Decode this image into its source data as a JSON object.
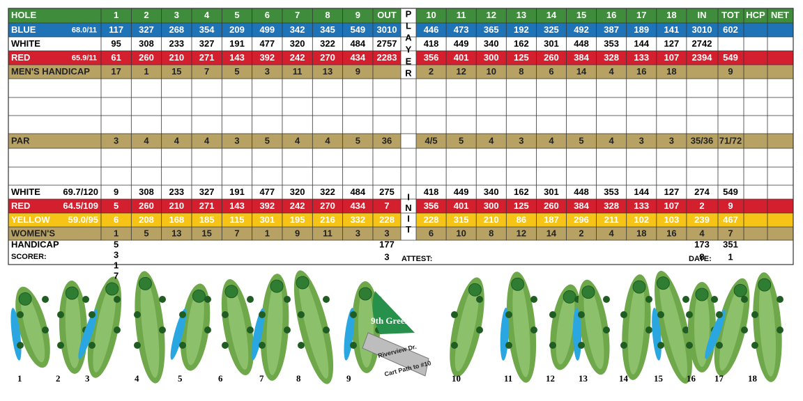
{
  "header": {
    "hole_label": "HOLE",
    "holes": [
      "1",
      "2",
      "3",
      "4",
      "5",
      "6",
      "7",
      "8",
      "9",
      "10",
      "11",
      "12",
      "13",
      "14",
      "15",
      "16",
      "17",
      "18"
    ],
    "out": "OUT",
    "in": "IN",
    "tot": "TOT",
    "hcp": "HCP",
    "net": "NET",
    "player": [
      "P",
      "L",
      "A",
      "Y",
      "E",
      "R"
    ]
  },
  "rows": [
    {
      "label": "BLUE",
      "rating": "68.0/11",
      "front": [
        117,
        327,
        268,
        354,
        209,
        499,
        342,
        345,
        549
      ],
      "out": 3010,
      "back": [
        446,
        473,
        365,
        192,
        325,
        492,
        387,
        189,
        141
      ],
      "in": 3010,
      "tot": 602
    },
    {
      "label": "WHITE",
      "front": [
        95,
        308,
        233,
        327,
        191,
        477,
        320,
        322,
        484
      ],
      "out": 2757,
      "back": [
        418,
        449,
        340,
        162,
        301,
        448,
        353,
        144,
        127
      ],
      "in": 2742
    },
    {
      "label": "RED",
      "rating": "65.9/11",
      "front": [
        61,
        260,
        210,
        271,
        143,
        392,
        242,
        270,
        434
      ],
      "out": 2283,
      "back": [
        356,
        401,
        300,
        125,
        260,
        384,
        328,
        133,
        107
      ],
      "in": 2394,
      "tot": 549
    },
    {
      "label": "MEN'S HANDICAP",
      "front": [
        17,
        1,
        15,
        7,
        5,
        3,
        11,
        13,
        9
      ],
      "back": [
        2,
        12,
        10,
        8,
        6,
        14,
        4,
        16,
        18
      ],
      "tot": 9
    },
    {
      "label": "PAR",
      "front": [
        3,
        4,
        4,
        4,
        3,
        5,
        4,
        4,
        5
      ],
      "out": 36,
      "back": [
        "4/5",
        5,
        4,
        3,
        4,
        5,
        4,
        3,
        3
      ],
      "in": "35/36",
      "tot": "71/72"
    },
    {
      "label": "WHITE",
      "rating": "69.7/120",
      "front": [
        9,
        308,
        233,
        327,
        191,
        477,
        320,
        322,
        484
      ],
      "out": 275,
      "back": [
        418,
        449,
        340,
        162,
        301,
        448,
        353,
        144,
        127
      ],
      "in": 274,
      "tot": 549
    },
    {
      "label": "RED",
      "rating": "64.5/109",
      "front": [
        5,
        260,
        210,
        271,
        143,
        392,
        242,
        270,
        434
      ],
      "out": 7,
      "back": [
        356,
        401,
        300,
        125,
        260,
        384,
        328,
        133,
        107
      ],
      "in": 2,
      "tot": 9
    },
    {
      "label": "YELLOW",
      "rating": "59.0/95",
      "front": [
        6,
        208,
        168,
        185,
        115,
        301,
        195,
        216,
        332
      ],
      "out": 228,
      "back": [
        228,
        315,
        210,
        86,
        187,
        296,
        211,
        102,
        103
      ],
      "in": 239,
      "tot": 467
    },
    {
      "label": "WOMEN'S",
      "front": [
        1,
        5,
        13,
        15,
        7,
        1,
        9,
        11,
        3
      ],
      "out": 3,
      "back": [
        6,
        10,
        8,
        12,
        14,
        2,
        4,
        18,
        16
      ],
      "in": 4,
      "tot": 7
    }
  ],
  "init": [
    "I",
    "N",
    "I",
    "T"
  ],
  "footer": {
    "handicap": "HANDICAP",
    "scorer": "SCORER:",
    "attest": "ATTEST:",
    "date": "DATE:",
    "hole1_stack": [
      5,
      3,
      1,
      7
    ],
    "out_stack": [
      177,
      3
    ],
    "in_stack": [
      173,
      8
    ],
    "tot_stack": [
      351,
      1
    ]
  },
  "map": {
    "holes": [
      "1",
      "2",
      "3",
      "4",
      "5",
      "6",
      "7",
      "8",
      "9",
      "10",
      "11",
      "12",
      "13",
      "14",
      "15",
      "16",
      "17",
      "18"
    ],
    "green": "9th Green",
    "road": "Riverview Dr.",
    "cart_path": "Cart Path to #10"
  }
}
